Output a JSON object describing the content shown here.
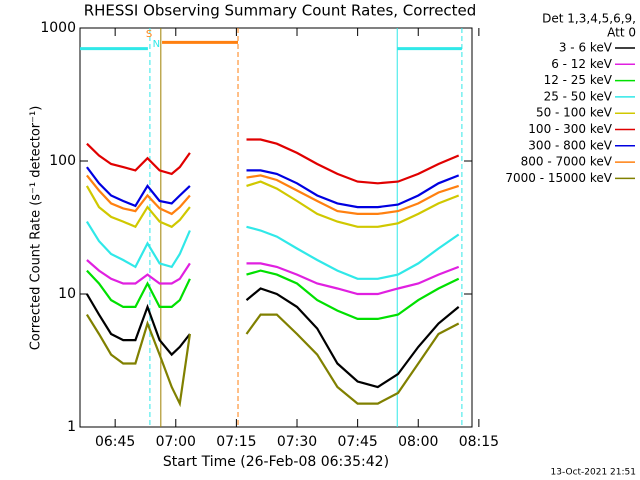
{
  "chart_data": {
    "type": "line",
    "title": "RHESSI Observing Summary Count Rates, Corrected",
    "xlabel": "Start Time (26-Feb-08 06:35:42)",
    "ylabel": "Corrected Count Rate (s⁻¹ detector⁻¹)",
    "legend_header": [
      "Det 1,3,4,5,6,9,",
      "Att 0"
    ],
    "footer": "13-Oct-2021 21:51",
    "legend": "outside-right",
    "yscale": "log",
    "xlim": [
      396.3,
      493.3
    ],
    "ylim": [
      1,
      1000
    ],
    "yticks": [
      1,
      10,
      100,
      1000
    ],
    "xticks": [
      {
        "value": 405,
        "label": "06:45"
      },
      {
        "value": 420,
        "label": "07:00"
      },
      {
        "value": 435,
        "label": "07:15"
      },
      {
        "value": 450,
        "label": "07:30"
      },
      {
        "value": 465,
        "label": "07:45"
      },
      {
        "value": 480,
        "label": "08:00"
      },
      {
        "value": 495,
        "label": "08:15"
      }
    ],
    "x": [
      398,
      401,
      404,
      407,
      410,
      413,
      416,
      419,
      421,
      423.5,
      430,
      437.5,
      441,
      445,
      450,
      455,
      460,
      465,
      470,
      475,
      480,
      485,
      490
    ],
    "series": [
      {
        "name": "3 - 6 keV",
        "color": "#000000",
        "values": [
          10,
          7,
          5,
          4.5,
          4.5,
          8,
          4.5,
          3.5,
          4,
          5,
          null,
          9,
          11,
          10,
          8,
          5.5,
          3,
          2.2,
          2,
          2.5,
          4,
          6,
          8
        ]
      },
      {
        "name": "6 - 12 keV",
        "color": "#e020e0",
        "values": [
          18,
          15,
          13,
          12,
          12,
          14,
          12,
          12,
          13,
          17,
          null,
          17,
          17,
          16,
          14,
          12,
          11,
          10,
          10,
          11,
          12,
          14,
          16
        ]
      },
      {
        "name": "12 - 25 keV",
        "color": "#00e000",
        "values": [
          15,
          12,
          9,
          8,
          8,
          12,
          8,
          8,
          9,
          13,
          null,
          14,
          15,
          14,
          12,
          9,
          7.5,
          6.5,
          6.5,
          7,
          9,
          11,
          13
        ]
      },
      {
        "name": "25 - 50 keV",
        "color": "#30e8e8",
        "values": [
          35,
          25,
          20,
          18,
          16,
          24,
          17,
          16,
          20,
          30,
          null,
          32,
          30,
          27,
          22,
          18,
          15,
          13,
          13,
          14,
          17,
          22,
          28
        ]
      },
      {
        "name": "50 - 100 keV",
        "color": "#d0c800",
        "values": [
          65,
          45,
          38,
          35,
          32,
          45,
          35,
          32,
          36,
          45,
          null,
          65,
          70,
          62,
          50,
          40,
          35,
          32,
          32,
          34,
          40,
          48,
          55
        ]
      },
      {
        "name": "100 - 300 keV",
        "color": "#e00000",
        "values": [
          135,
          110,
          95,
          90,
          85,
          105,
          85,
          80,
          90,
          115,
          null,
          145,
          145,
          135,
          115,
          95,
          80,
          70,
          68,
          70,
          80,
          95,
          110
        ]
      },
      {
        "name": "300 - 800 keV",
        "color": "#0000e0",
        "values": [
          90,
          68,
          55,
          50,
          46,
          65,
          50,
          48,
          55,
          65,
          null,
          85,
          85,
          80,
          68,
          55,
          48,
          45,
          45,
          47,
          55,
          68,
          78
        ]
      },
      {
        "name": "800 - 7000 keV",
        "color": "#ff8010",
        "values": [
          78,
          60,
          48,
          44,
          42,
          55,
          44,
          40,
          45,
          55,
          null,
          75,
          78,
          72,
          60,
          50,
          42,
          40,
          40,
          42,
          48,
          58,
          65
        ]
      },
      {
        "name": "7000 - 15000 keV",
        "color": "#808000",
        "values": [
          7,
          5,
          3.5,
          3,
          3,
          6,
          3.5,
          2,
          1.5,
          5,
          null,
          5,
          7,
          7,
          5,
          3.5,
          2,
          1.5,
          1.5,
          1.8,
          3,
          5,
          6
        ]
      }
    ],
    "markers": [
      {
        "x": 413.6,
        "color": "#30e8e8",
        "dashed": true
      },
      {
        "x": 416.3,
        "color": "#a08000",
        "dashed": false
      },
      {
        "x": 435.4,
        "color": "#ff8010",
        "dashed": true
      },
      {
        "x": 474.8,
        "color": "#30e8e8",
        "dashed": false
      },
      {
        "x": 490.8,
        "color": "#30e8e8",
        "dashed": true
      }
    ],
    "flag_bars": [
      {
        "x": [
          396.3,
          413.1
        ],
        "y": 700,
        "color": "#30e8e8"
      },
      {
        "x": [
          474.8,
          490.8
        ],
        "y": 700,
        "color": "#30e8e8"
      },
      {
        "x": [
          416.6,
          435.4
        ],
        "y": 780,
        "color": "#ff8010"
      }
    ],
    "annotations": [
      {
        "text": "S",
        "x": 413.4,
        "y": 900,
        "color": "#ff8010"
      },
      {
        "text": "N",
        "x": 415.2,
        "y": 760,
        "color": "#30e8e8"
      }
    ]
  }
}
